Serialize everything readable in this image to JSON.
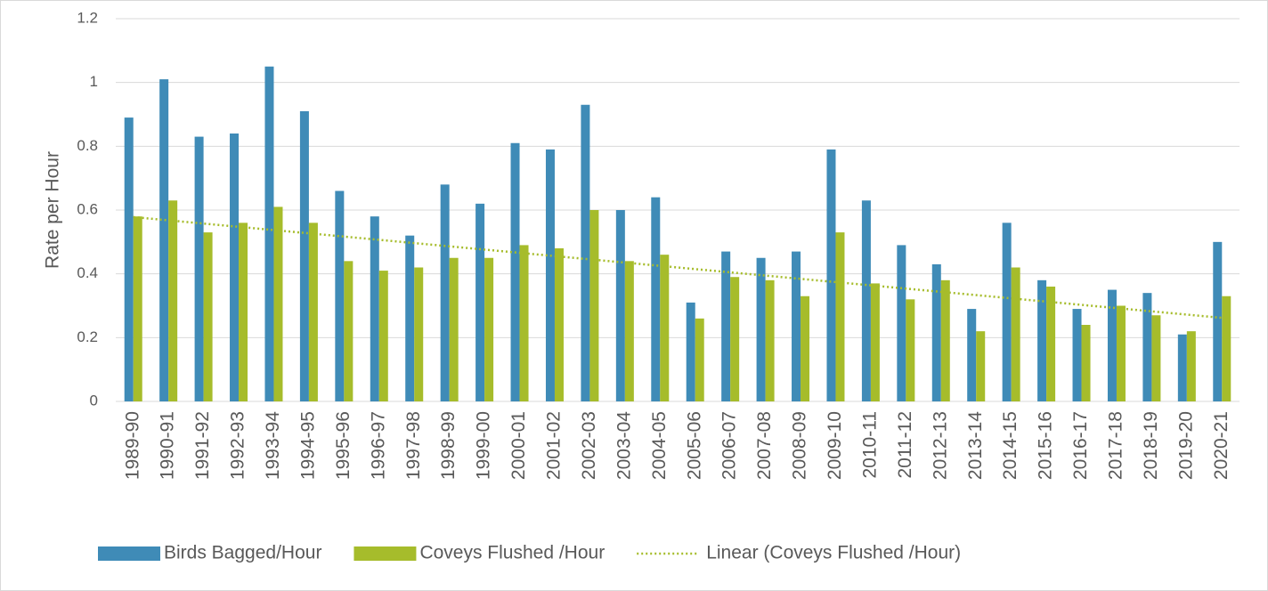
{
  "chart_data": {
    "type": "bar",
    "y_label": "Rate per Hour",
    "categories": [
      "1989-90",
      "1990-91",
      "1991-92",
      "1992-93",
      "1993-94",
      "1994-95",
      "1995-96",
      "1996-97",
      "1997-98",
      "1998-99",
      "1999-00",
      "2000-01",
      "2001-02",
      "2002-03",
      "2003-04",
      "2004-05",
      "2005-06",
      "2006-07",
      "2007-08",
      "2008-09",
      "2009-10",
      "2010-11",
      "2011-12",
      "2012-13",
      "2013-14",
      "2014-15",
      "2015-16",
      "2016-17",
      "2017-18",
      "2018-19",
      "2019-20",
      "2020-21"
    ],
    "series": [
      {
        "name": "Birds Bagged/Hour",
        "color": "#3f8bb7",
        "values": [
          0.89,
          1.01,
          0.83,
          0.84,
          1.05,
          0.91,
          0.66,
          0.58,
          0.52,
          0.68,
          0.62,
          0.81,
          0.79,
          0.93,
          0.6,
          0.64,
          0.31,
          0.47,
          0.45,
          0.47,
          0.79,
          0.63,
          0.49,
          0.43,
          0.29,
          0.56,
          0.38,
          0.29,
          0.35,
          0.34,
          0.21,
          0.5
        ]
      },
      {
        "name": "Coveys Flushed /Hour",
        "color": "#a6bc2b",
        "values": [
          0.58,
          0.63,
          0.53,
          0.56,
          0.61,
          0.56,
          0.44,
          0.41,
          0.42,
          0.45,
          0.45,
          0.49,
          0.48,
          0.6,
          0.44,
          0.46,
          0.26,
          0.39,
          0.38,
          0.33,
          0.53,
          0.37,
          0.32,
          0.38,
          0.22,
          0.42,
          0.36,
          0.24,
          0.3,
          0.27,
          0.22,
          0.33
        ]
      }
    ],
    "trendline": {
      "name": "Linear (Coveys Flushed /Hour)",
      "color": "#a6bc2b",
      "start": 0.578,
      "end": 0.262
    },
    "ylim": [
      0,
      1.2
    ],
    "yticks": [
      0,
      0.2,
      0.4,
      0.6,
      0.8,
      1,
      1.2
    ],
    "grid": true
  }
}
